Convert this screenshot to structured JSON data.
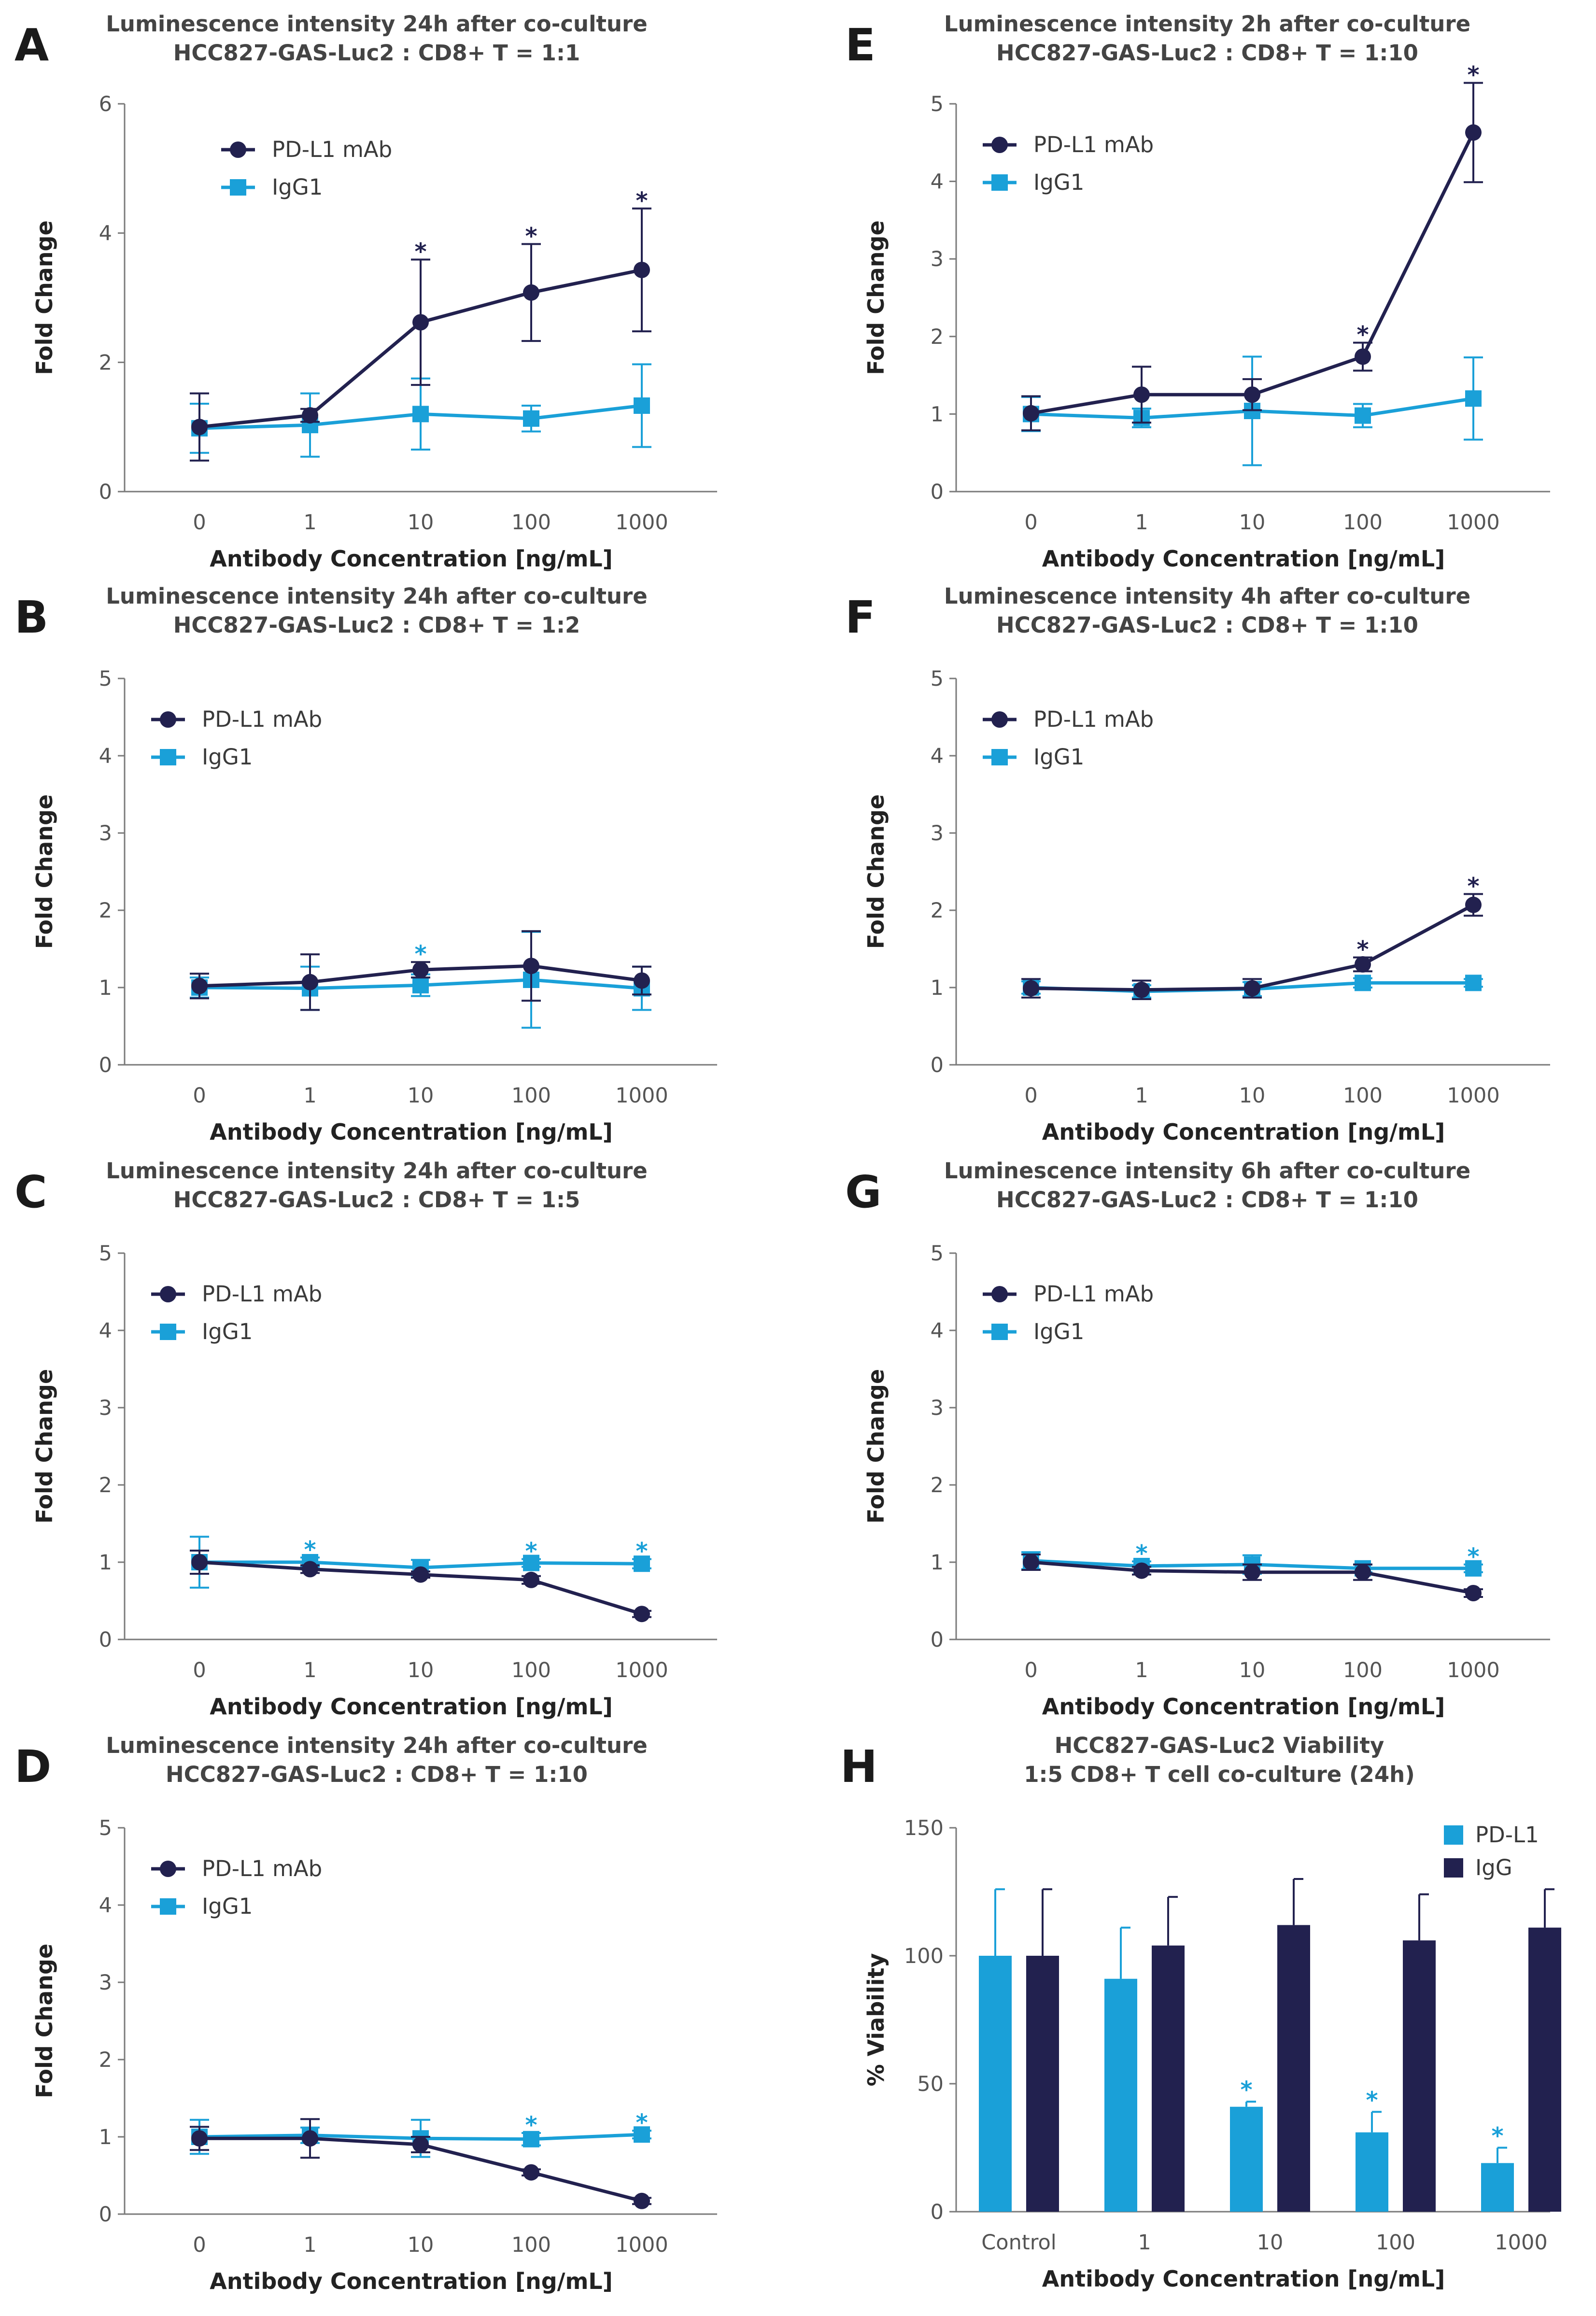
{
  "colors": {
    "pd_l1": "#22214f",
    "igg": "#1aa0d8",
    "axis": "#7a7a7a",
    "text": "#444444"
  },
  "chart_data": [
    {
      "panel": "A",
      "type": "line",
      "title": [
        "Luminescence intensity 24h after co-culture",
        "HCC827-GAS-Luc2 : CD8+ T = 1:1"
      ],
      "xlabel": "Antibody Concentration [ng/mL]",
      "ylabel": "Fold Change",
      "categories": [
        "0",
        "1",
        "10",
        "100",
        "1000"
      ],
      "ylim": [
        0,
        6
      ],
      "yticks": [
        0,
        2,
        4,
        6
      ],
      "legend": [
        "PD-L1 mAb",
        "IgG1"
      ],
      "series": [
        {
          "name": "PD-L1 mAb",
          "values": [
            1.0,
            1.18,
            2.62,
            3.08,
            3.43
          ],
          "errors": [
            0.52,
            0.1,
            0.97,
            0.75,
            0.95
          ],
          "stars": [
            false,
            false,
            true,
            true,
            true
          ]
        },
        {
          "name": "IgG1",
          "values": [
            0.98,
            1.03,
            1.2,
            1.13,
            1.33
          ],
          "errors": [
            0.38,
            0.49,
            0.55,
            0.2,
            0.64
          ],
          "stars": [
            false,
            false,
            false,
            false,
            false
          ]
        }
      ]
    },
    {
      "panel": "B",
      "type": "line",
      "title": [
        "Luminescence intensity 24h after co-culture",
        "HCC827-GAS-Luc2 : CD8+ T = 1:2"
      ],
      "xlabel": "Antibody Concentration [ng/mL]",
      "ylabel": "Fold Change",
      "categories": [
        "0",
        "1",
        "10",
        "100",
        "1000"
      ],
      "ylim": [
        0,
        5
      ],
      "yticks": [
        0,
        1,
        2,
        3,
        4,
        5
      ],
      "legend": [
        "PD-L1 mAb",
        "IgG1"
      ],
      "series": [
        {
          "name": "PD-L1 mAb",
          "values": [
            1.02,
            1.07,
            1.23,
            1.28,
            1.09
          ],
          "errors": [
            0.16,
            0.36,
            0.1,
            0.45,
            0.18
          ],
          "stars": [
            false,
            false,
            false,
            false,
            false
          ]
        },
        {
          "name": "IgG1",
          "values": [
            1.0,
            0.99,
            1.03,
            1.1,
            0.99
          ],
          "errors": [
            0.13,
            0.28,
            0.14,
            0.62,
            0.28
          ],
          "stars": [
            false,
            false,
            true,
            false,
            false
          ]
        }
      ]
    },
    {
      "panel": "C",
      "type": "line",
      "title": [
        "Luminescence intensity 24h after co-culture",
        "HCC827-GAS-Luc2 : CD8+ T = 1:5"
      ],
      "xlabel": "Antibody Concentration [ng/mL]",
      "ylabel": "Fold Change",
      "categories": [
        "0",
        "1",
        "10",
        "100",
        "1000"
      ],
      "ylim": [
        0,
        5
      ],
      "yticks": [
        0,
        1,
        2,
        3,
        4,
        5
      ],
      "legend": [
        "PD-L1 mAb",
        "IgG1"
      ],
      "series": [
        {
          "name": "PD-L1 mAb",
          "values": [
            1.0,
            0.91,
            0.84,
            0.77,
            0.33
          ],
          "errors": [
            0.15,
            0.05,
            0.04,
            0.05,
            0.04
          ],
          "stars": [
            false,
            false,
            false,
            false,
            false
          ]
        },
        {
          "name": "IgG1",
          "values": [
            1.0,
            1.0,
            0.93,
            0.99,
            0.98
          ],
          "errors": [
            0.33,
            0.06,
            0.1,
            0.05,
            0.06
          ],
          "stars": [
            false,
            true,
            false,
            true,
            true
          ]
        }
      ]
    },
    {
      "panel": "D",
      "type": "line",
      "title": [
        "Luminescence intensity 24h after co-culture",
        "HCC827-GAS-Luc2 : CD8+ T = 1:10"
      ],
      "xlabel": "Antibody Concentration [ng/mL]",
      "ylabel": "Fold Change",
      "categories": [
        "0",
        "1",
        "10",
        "100",
        "1000"
      ],
      "ylim": [
        0,
        5
      ],
      "yticks": [
        0,
        1,
        2,
        3,
        4,
        5
      ],
      "legend": [
        "PD-L1 mAb",
        "IgG1"
      ],
      "series": [
        {
          "name": "PD-L1 mAb",
          "values": [
            0.98,
            0.98,
            0.9,
            0.54,
            0.17
          ],
          "errors": [
            0.15,
            0.25,
            0.1,
            0.04,
            0.04
          ],
          "stars": [
            false,
            false,
            false,
            false,
            false
          ]
        },
        {
          "name": "IgG1",
          "values": [
            1.0,
            1.02,
            0.98,
            0.97,
            1.03
          ],
          "errors": [
            0.22,
            0.1,
            0.24,
            0.08,
            0.05
          ],
          "stars": [
            false,
            false,
            false,
            true,
            true
          ]
        }
      ]
    },
    {
      "panel": "E",
      "type": "line",
      "title": [
        "Luminescence intensity 2h after co-culture",
        "HCC827-GAS-Luc2 : CD8+ T = 1:10"
      ],
      "xlabel": "Antibody Concentration [ng/mL]",
      "ylabel": "Fold Change",
      "categories": [
        "0",
        "1",
        "10",
        "100",
        "1000"
      ],
      "ylim": [
        0,
        5
      ],
      "yticks": [
        0,
        1,
        2,
        3,
        4,
        5
      ],
      "legend": [
        "PD-L1 mAb",
        "IgG1"
      ],
      "series": [
        {
          "name": "PD-L1 mAb",
          "values": [
            1.01,
            1.25,
            1.25,
            1.74,
            4.63
          ],
          "errors": [
            0.22,
            0.36,
            0.2,
            0.18,
            0.64
          ],
          "stars": [
            false,
            false,
            false,
            true,
            true
          ]
        },
        {
          "name": "IgG1",
          "values": [
            1.0,
            0.95,
            1.04,
            0.98,
            1.2
          ],
          "errors": [
            0.22,
            0.12,
            0.7,
            0.15,
            0.53
          ],
          "stars": [
            false,
            false,
            false,
            false,
            false
          ]
        }
      ]
    },
    {
      "panel": "F",
      "type": "line",
      "title": [
        "Luminescence intensity 4h after co-culture",
        "HCC827-GAS-Luc2 : CD8+ T = 1:10"
      ],
      "xlabel": "Antibody Concentration [ng/mL]",
      "ylabel": "Fold Change",
      "categories": [
        "0",
        "1",
        "10",
        "100",
        "1000"
      ],
      "ylim": [
        0,
        5
      ],
      "yticks": [
        0,
        1,
        2,
        3,
        4,
        5
      ],
      "legend": [
        "PD-L1 mAb",
        "IgG1"
      ],
      "series": [
        {
          "name": "PD-L1 mAb",
          "values": [
            0.99,
            0.97,
            0.99,
            1.3,
            2.07
          ],
          "errors": [
            0.12,
            0.12,
            0.12,
            0.09,
            0.14
          ],
          "stars": [
            false,
            false,
            false,
            true,
            true
          ]
        },
        {
          "name": "IgG1",
          "values": [
            1.0,
            0.95,
            0.98,
            1.06,
            1.06
          ],
          "errors": [
            0.08,
            0.08,
            0.09,
            0.06,
            0.05
          ],
          "stars": [
            false,
            false,
            false,
            false,
            false
          ]
        }
      ]
    },
    {
      "panel": "G",
      "type": "line",
      "title": [
        "Luminescence intensity 6h after co-culture",
        "HCC827-GAS-Luc2 : CD8+ T = 1:10"
      ],
      "xlabel": "Antibody Concentration [ng/mL]",
      "ylabel": "Fold Change",
      "categories": [
        "0",
        "1",
        "10",
        "100",
        "1000"
      ],
      "ylim": [
        0,
        5
      ],
      "yticks": [
        0,
        1,
        2,
        3,
        4,
        5
      ],
      "legend": [
        "PD-L1 mAb",
        "IgG1"
      ],
      "series": [
        {
          "name": "PD-L1 mAb",
          "values": [
            1.0,
            0.89,
            0.87,
            0.87,
            0.6
          ],
          "errors": [
            0.1,
            0.05,
            0.1,
            0.1,
            0.05
          ],
          "stars": [
            false,
            false,
            false,
            false,
            false
          ]
        },
        {
          "name": "IgG1",
          "values": [
            1.02,
            0.95,
            0.97,
            0.92,
            0.92
          ],
          "errors": [
            0.11,
            0.06,
            0.12,
            0.05,
            0.05
          ],
          "stars": [
            false,
            true,
            false,
            false,
            true
          ]
        }
      ]
    },
    {
      "panel": "H",
      "type": "bar",
      "title": [
        "HCC827-GAS-Luc2 Viability",
        "1:5 CD8+ T cell co-culture (24h)"
      ],
      "xlabel": "Antibody Concentration [ng/mL]",
      "ylabel": "% Viability",
      "categories": [
        "Control",
        "1",
        "10",
        "100",
        "1000"
      ],
      "ylim": [
        0,
        150
      ],
      "yticks": [
        0,
        50,
        100,
        150
      ],
      "legend": [
        "PD-L1",
        "IgG"
      ],
      "series": [
        {
          "name": "PD-L1",
          "values": [
            100,
            91,
            41,
            31,
            19
          ],
          "errors": [
            26,
            20,
            2,
            8,
            6
          ],
          "stars": [
            false,
            false,
            true,
            true,
            true
          ]
        },
        {
          "name": "IgG",
          "values": [
            100,
            104,
            112,
            106,
            111
          ],
          "errors": [
            26,
            19,
            18,
            18,
            15
          ],
          "stars": [
            false,
            false,
            false,
            false,
            false
          ]
        }
      ]
    }
  ]
}
